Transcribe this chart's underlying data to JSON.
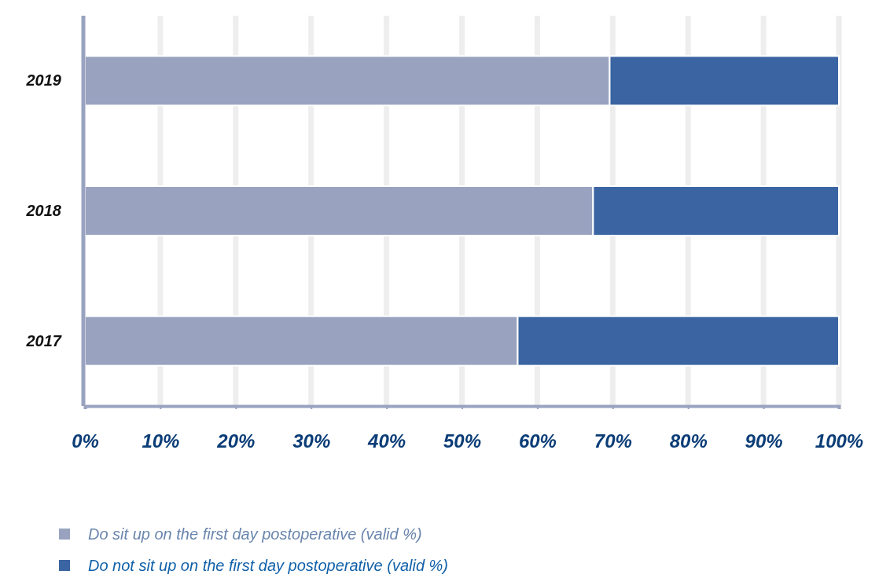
{
  "chart_data": {
    "type": "bar",
    "orientation": "horizontal",
    "stacked": true,
    "categories": [
      "2019",
      "2018",
      "2017"
    ],
    "series": [
      {
        "name": "Do sit up on the first day postoperative (valid %)",
        "color": "#99a3c0",
        "values": [
          69.6,
          67.4,
          57.4
        ]
      },
      {
        "name": "Do not sit up on the first day postoperative (valid %)",
        "color": "#3a64a2",
        "values": [
          30.4,
          32.6,
          42.6
        ]
      }
    ],
    "xlim": [
      0,
      100
    ],
    "xticks": [
      {
        "value": 0,
        "label": "0%"
      },
      {
        "value": 10,
        "label": "10%"
      },
      {
        "value": 20,
        "label": "20%"
      },
      {
        "value": 30,
        "label": "30%"
      },
      {
        "value": 40,
        "label": "40%"
      },
      {
        "value": 50,
        "label": "50%"
      },
      {
        "value": 60,
        "label": "60%"
      },
      {
        "value": 70,
        "label": "70%"
      },
      {
        "value": 80,
        "label": "80%"
      },
      {
        "value": 90,
        "label": "90%"
      },
      {
        "value": 100,
        "label": "100%"
      }
    ],
    "grid": "x",
    "legend": "bottom"
  }
}
